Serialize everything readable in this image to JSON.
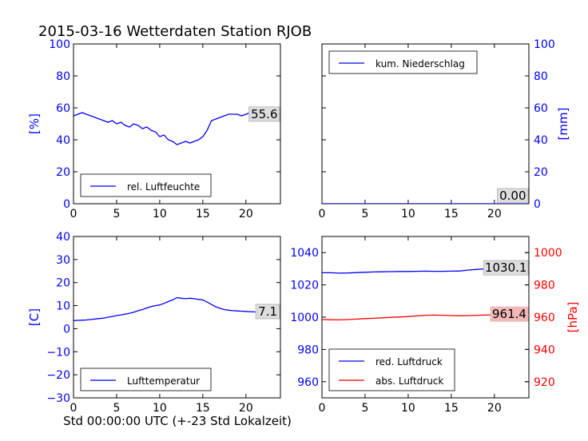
{
  "figure": {
    "title": "2015-03-16 Wetterdaten Station RJOB",
    "xlabel": "Std 00:00:00 UTC (+-23 Std Lokalzeit)"
  },
  "colors": {
    "primary": "#0000ff",
    "secondary": "#ff0000",
    "frame": "#000000",
    "label_box": "#dddddd",
    "label_box_red": "#f2b8b8"
  },
  "chart_data": [
    {
      "id": "humidity",
      "type": "line",
      "title": "",
      "xlabel": "",
      "ylabel": "[%]",
      "xlim": [
        0,
        24
      ],
      "ylim": [
        0,
        100
      ],
      "xticks": [
        0,
        5,
        10,
        15,
        20
      ],
      "yticks": [
        0,
        20,
        40,
        60,
        80,
        100
      ],
      "legend": "lower-left",
      "series": [
        {
          "name": "rel. Luftfeuchte",
          "color": "#0000ff",
          "x": [
            0,
            0.5,
            1,
            1.5,
            2,
            2.5,
            3,
            3.5,
            4,
            4.5,
            5,
            5.5,
            6,
            6.5,
            7,
            7.5,
            8,
            8.5,
            9,
            9.5,
            10,
            10.5,
            11,
            11.5,
            12,
            12.5,
            13,
            13.5,
            14,
            14.5,
            15,
            15.5,
            16,
            16.5,
            17,
            17.5,
            18,
            18.5,
            19,
            19.5,
            20,
            20.5,
            21,
            21.5,
            22,
            22.5,
            23,
            23.5
          ],
          "y": [
            55,
            56,
            57,
            56,
            55,
            54,
            53,
            52,
            51,
            52,
            50,
            51,
            49,
            48,
            50,
            49,
            47,
            48,
            46,
            45,
            42,
            43,
            40,
            39,
            37,
            38,
            39,
            38,
            39,
            40,
            42,
            46,
            52,
            53,
            54,
            55,
            56,
            56,
            56,
            55,
            56,
            57,
            56,
            56,
            55,
            54,
            55,
            55.6
          ]
        }
      ],
      "last_value_label": "55.6"
    },
    {
      "id": "precipitation",
      "type": "line",
      "title": "",
      "xlabel": "",
      "ylabel": "[mm]",
      "xlim": [
        0,
        24
      ],
      "ylim": [
        0,
        100
      ],
      "xticks": [
        0,
        5,
        10,
        15,
        20
      ],
      "yticks": [
        0,
        20,
        40,
        60,
        80,
        100
      ],
      "yaxis_side": "right",
      "legend": "top-left",
      "series": [
        {
          "name": "kum. Niederschlag",
          "color": "#0000ff",
          "x": [
            0,
            4,
            8,
            12,
            16,
            20,
            24
          ],
          "y": [
            0,
            0,
            0,
            0,
            0,
            0,
            0
          ]
        }
      ],
      "last_value_label": "0.00"
    },
    {
      "id": "temperature",
      "type": "line",
      "title": "",
      "xlabel": "",
      "ylabel": "[C]",
      "xlim": [
        0,
        24
      ],
      "ylim": [
        -30,
        40
      ],
      "xticks": [
        0,
        5,
        10,
        15,
        20
      ],
      "yticks": [
        -30,
        -20,
        -10,
        0,
        10,
        20,
        30,
        40
      ],
      "legend": "lower-left",
      "series": [
        {
          "name": "Lufttemperatur",
          "color": "#0000ff",
          "x": [
            0,
            0.5,
            1,
            1.5,
            2,
            2.5,
            3,
            3.5,
            4,
            4.5,
            5,
            5.5,
            6,
            6.5,
            7,
            7.5,
            8,
            8.5,
            9,
            9.5,
            10,
            10.5,
            11,
            11.5,
            12,
            12.5,
            13,
            13.5,
            14,
            14.5,
            15,
            15.5,
            16,
            16.5,
            17,
            17.5,
            18,
            18.5,
            19,
            19.5,
            20,
            20.5,
            21,
            21.5,
            22,
            22.5,
            23,
            23.5
          ],
          "y": [
            3.5,
            3.6,
            3.7,
            3.8,
            4.0,
            4.2,
            4.4,
            4.6,
            5.0,
            5.3,
            5.7,
            6.0,
            6.3,
            6.7,
            7.2,
            7.8,
            8.3,
            9.0,
            9.6,
            10.0,
            10.3,
            11.0,
            11.8,
            12.5,
            13.5,
            13.2,
            13.0,
            13.2,
            13.0,
            12.7,
            12.5,
            11.5,
            10.5,
            9.5,
            8.8,
            8.3,
            8.0,
            7.8,
            7.7,
            7.6,
            7.5,
            7.4,
            7.3,
            7.2,
            7.2,
            7.1,
            7.1,
            7.1
          ]
        }
      ],
      "last_value_label": "7.1"
    },
    {
      "id": "pressure",
      "type": "line",
      "title": "",
      "xlabel": "",
      "ylabel_right": "[hPa]",
      "xlim": [
        0,
        24
      ],
      "ylim_left": [
        950,
        1050
      ],
      "ylim_right": [
        910,
        1010
      ],
      "xticks": [
        0,
        5,
        10,
        15,
        20
      ],
      "yticks_left": [
        960,
        980,
        1000,
        1020,
        1040
      ],
      "yticks_right": [
        920,
        940,
        960,
        980,
        1000
      ],
      "legend": "lower-left",
      "series": [
        {
          "name": "red. Luftdruck",
          "color": "#0000ff",
          "axis": "left",
          "x": [
            0,
            1,
            2,
            3,
            4,
            5,
            6,
            7,
            8,
            9,
            10,
            11,
            12,
            13,
            14,
            15,
            16,
            17,
            18,
            19,
            20,
            21,
            22,
            23,
            24
          ],
          "y": [
            1027.5,
            1027.5,
            1027.3,
            1027.4,
            1027.6,
            1027.8,
            1028.0,
            1028.1,
            1028.2,
            1028.3,
            1028.3,
            1028.4,
            1028.5,
            1028.4,
            1028.4,
            1028.5,
            1028.6,
            1029.2,
            1029.6,
            1030.0,
            1030.1,
            1030.1,
            1030.1,
            1030.1,
            1030.1
          ]
        },
        {
          "name": "abs. Luftdruck",
          "color": "#ff0000",
          "axis": "right",
          "x": [
            0,
            1,
            2,
            3,
            4,
            5,
            6,
            7,
            8,
            9,
            10,
            11,
            12,
            13,
            14,
            15,
            16,
            17,
            18,
            19,
            20,
            21,
            22,
            23,
            24
          ],
          "y": [
            958.5,
            958.4,
            958.3,
            958.5,
            958.8,
            959.1,
            959.3,
            959.6,
            959.9,
            960.1,
            960.4,
            960.8,
            961.2,
            961.3,
            961.2,
            961.0,
            960.9,
            961.0,
            961.2,
            961.3,
            961.4,
            961.4,
            961.4,
            961.4,
            961.4
          ]
        }
      ],
      "last_value_labels": [
        "1030.1",
        "961.4"
      ]
    }
  ]
}
